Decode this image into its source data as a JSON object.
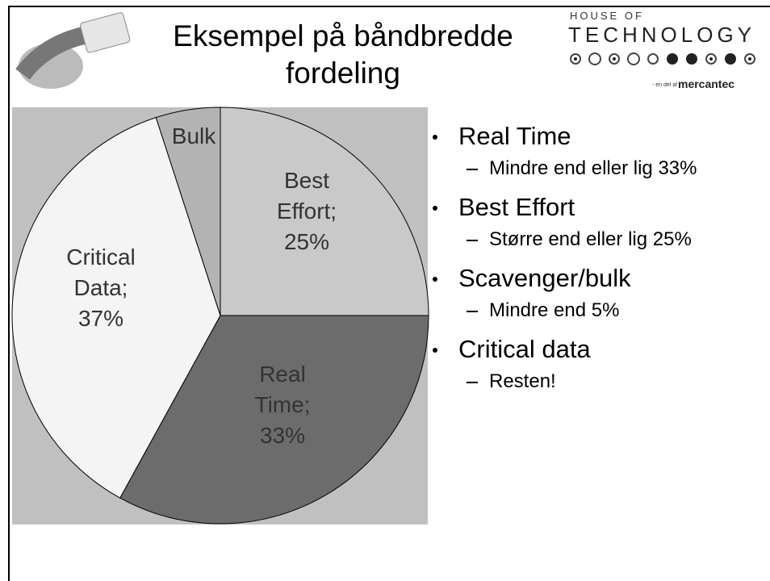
{
  "slide": {
    "title": "Eksempel på båndbredde fordeling",
    "logo": {
      "top": "HOUSE OF",
      "main": "TECHNOLOGY",
      "tag": "- en del af",
      "brand": "mercantec"
    },
    "bullets": [
      {
        "text": "Real Time",
        "sub": "Mindre end eller lig 33%"
      },
      {
        "text": "Best Effort",
        "sub": "Større end eller lig 25%"
      },
      {
        "text": "Scavenger/bulk",
        "sub": "Mindre end 5%"
      },
      {
        "text": "Critical data",
        "sub": "Resten!"
      }
    ]
  },
  "chart_data": {
    "type": "pie",
    "labels": [
      "Best Effort; 25%",
      "Real Time; 33%",
      "Critical Data; 37%",
      "Bulk"
    ],
    "values": [
      25,
      33,
      37,
      5
    ],
    "colors": [
      "#c9c9c9",
      "#6c6c6c",
      "#f4f4f4",
      "#b3b3b3"
    ],
    "background": "#c0c0c0"
  }
}
